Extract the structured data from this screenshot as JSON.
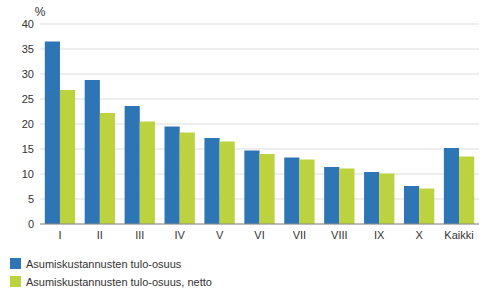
{
  "chart_data": {
    "type": "bar",
    "categories": [
      "I",
      "II",
      "III",
      "IV",
      "V",
      "VI",
      "VII",
      "VIII",
      "IX",
      "X",
      "Kaikki"
    ],
    "series": [
      {
        "name": "Asumiskustannusten tulo-osuus",
        "color": "#2e75b6",
        "values": [
          36.5,
          28.8,
          23.6,
          19.5,
          17.2,
          14.7,
          13.3,
          11.4,
          10.4,
          7.6,
          15.2
        ]
      },
      {
        "name": "Asumiskustannusten tulo-osuus, netto",
        "color": "#bdd23f",
        "values": [
          26.8,
          22.2,
          20.5,
          18.3,
          16.5,
          14.0,
          12.9,
          11.1,
          10.1,
          7.1,
          13.5
        ]
      }
    ],
    "y_label": "%",
    "ylim": [
      0,
      40
    ],
    "yticks": [
      0,
      5,
      10,
      15,
      20,
      25,
      30,
      35,
      40
    ],
    "grid": true,
    "legend": "bottom"
  }
}
